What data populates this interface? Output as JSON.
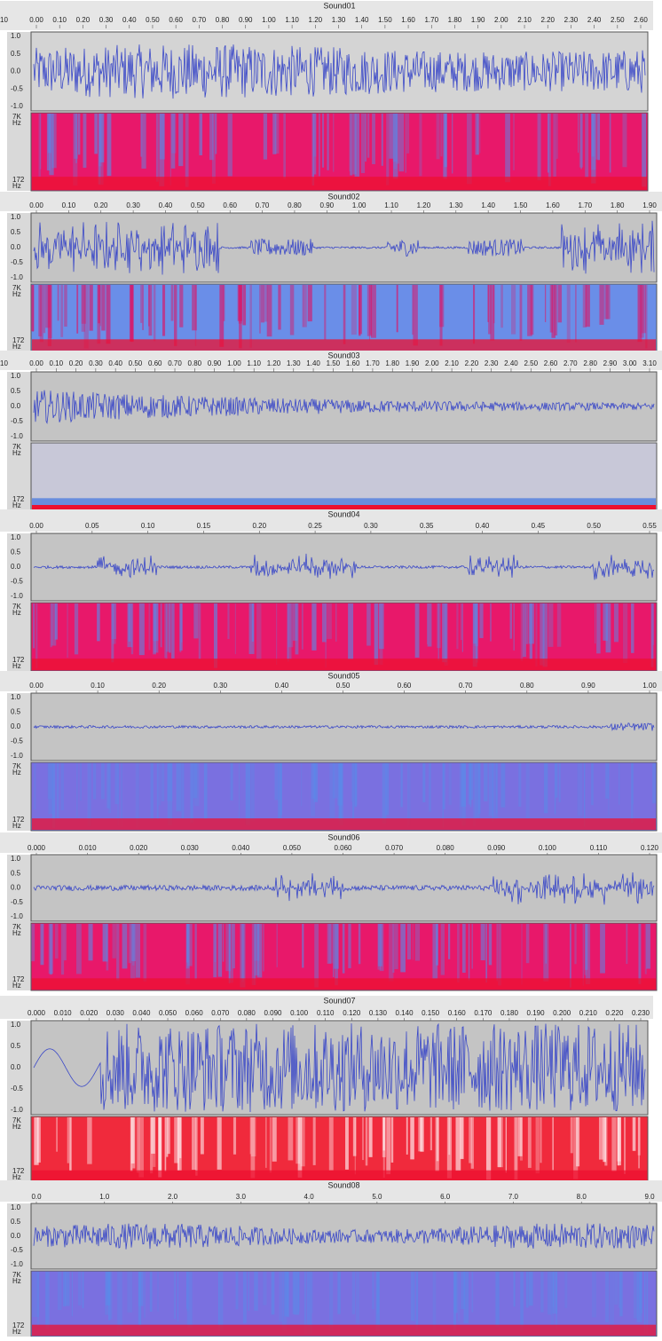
{
  "amplitude_labels": [
    "1.0",
    "0.5",
    "0.0",
    "-0.5",
    "-1.0"
  ],
  "spectrogram_labels": [
    "7K",
    "Hz",
    "172",
    "Hz"
  ],
  "tracks": [
    {
      "title": "Sound01",
      "ruler": [
        "10",
        "0.00",
        "0.10",
        "0.20",
        "0.30",
        "0.40",
        "0.50",
        "0.60",
        "0.70",
        "0.80",
        "0.90",
        "1.00",
        "1.10",
        "1.20",
        "1.30",
        "1.40",
        "1.50",
        "1.60",
        "1.70",
        "1.80",
        "1.90",
        "2.00",
        "2.10",
        "2.20",
        "2.30",
        "2.40",
        "2.50",
        "2.60"
      ]
    },
    {
      "title": "Sound02",
      "ruler": [
        "0.00",
        "0.10",
        "0.20",
        "0.30",
        "0.40",
        "0.50",
        "0.60",
        "0.70",
        "0.80",
        "0.90",
        "1.00",
        "1.10",
        "1.20",
        "1.30",
        "1.40",
        "1.50",
        "1.60",
        "1.70",
        "1.80",
        "1.90"
      ]
    },
    {
      "title": "Sound03",
      "ruler": [
        "10",
        "0.00",
        "0.10",
        "0.20",
        "0.30",
        "0.40",
        "0.50",
        "0.60",
        "0.70",
        "0.80",
        "0.90",
        "1.00",
        "1.10",
        "1.20",
        "1.30",
        "1.40",
        "1.50",
        "1.60",
        "1.70",
        "1.80",
        "1.90",
        "2.00",
        "2.10",
        "2.20",
        "2.30",
        "2.40",
        "2.50",
        "2.60",
        "2.70",
        "2.80",
        "2.90",
        "3.00",
        "3.10"
      ]
    },
    {
      "title": "Sound04",
      "ruler": [
        "0.00",
        "0.05",
        "0.10",
        "0.15",
        "0.20",
        "0.25",
        "0.30",
        "0.35",
        "0.40",
        "0.45",
        "0.50",
        "0.55"
      ]
    },
    {
      "title": "Sound05",
      "ruler": [
        "0.00",
        "0.10",
        "0.20",
        "0.30",
        "0.40",
        "0.50",
        "0.60",
        "0.70",
        "0.80",
        "0.90",
        "1.00"
      ]
    },
    {
      "title": "Sound06",
      "ruler": [
        "0.000",
        "0.010",
        "0.020",
        "0.030",
        "0.040",
        "0.050",
        "0.060",
        "0.070",
        "0.080",
        "0.090",
        "0.100",
        "0.110",
        "0.120"
      ]
    },
    {
      "title": "Sound07",
      "ruler": [
        "0.000",
        "0.010",
        "0.020",
        "0.030",
        "0.040",
        "0.050",
        "0.060",
        "0.070",
        "0.080",
        "0.090",
        "0.100",
        "0.110",
        "0.120",
        "0.130",
        "0.140",
        "0.150",
        "0.160",
        "0.170",
        "0.180",
        "0.190",
        "0.200",
        "0.210",
        "0.220",
        "0.230"
      ]
    },
    {
      "title": "Sound08",
      "ruler": [
        "0.0",
        "1.0",
        "2.0",
        "3.0",
        "4.0",
        "5.0",
        "6.0",
        "7.0",
        "8.0",
        "9.0"
      ]
    }
  ]
}
